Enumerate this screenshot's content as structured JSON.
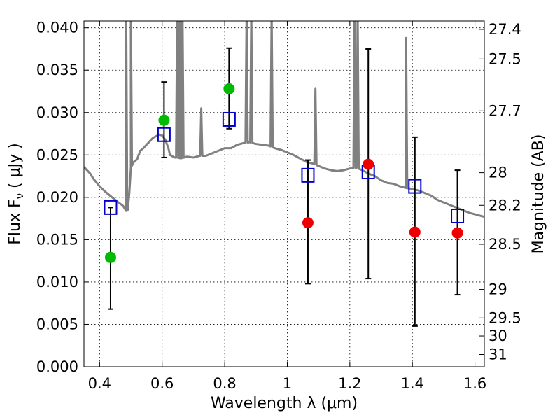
{
  "chart_data": {
    "type": "scatter",
    "xlabel": "Wavelength  λ (μm)",
    "ylabel": "Flux  F",
    "ylabel_sub": "ν",
    "ylabel_unit": "  ( μJy )",
    "y2label": "Magnitude (AB)",
    "xlim": [
      0.35,
      1.63
    ],
    "ylim": [
      0.0,
      0.0408
    ],
    "grid": true,
    "x_ticks": [
      {
        "value": 0.4,
        "label": "0.4"
      },
      {
        "value": 0.6,
        "label": "0.6"
      },
      {
        "value": 0.8,
        "label": "0.8"
      },
      {
        "value": 1.0,
        "label": "1"
      },
      {
        "value": 1.2,
        "label": "1.2"
      },
      {
        "value": 1.4,
        "label": "1.4"
      },
      {
        "value": 1.6,
        "label": "1.6"
      }
    ],
    "y_ticks": [
      {
        "value": 0.0,
        "label": "0.000"
      },
      {
        "value": 0.005,
        "label": "0.005"
      },
      {
        "value": 0.01,
        "label": "0.010"
      },
      {
        "value": 0.015,
        "label": "0.015"
      },
      {
        "value": 0.02,
        "label": "0.020"
      },
      {
        "value": 0.025,
        "label": "0.025"
      },
      {
        "value": 0.03,
        "label": "0.030"
      },
      {
        "value": 0.035,
        "label": "0.035"
      },
      {
        "value": 0.04,
        "label": "0.040"
      }
    ],
    "y2_ticks": [
      {
        "value": 27.4,
        "label": "27.4"
      },
      {
        "value": 27.5,
        "label": "27.5"
      },
      {
        "value": 27.7,
        "label": "27.7"
      },
      {
        "value": 28.0,
        "label": "28"
      },
      {
        "value": 28.2,
        "label": "28.2"
      },
      {
        "value": 28.5,
        "label": "28.5"
      },
      {
        "value": 29.0,
        "label": "29"
      },
      {
        "value": 29.5,
        "label": "29.5"
      },
      {
        "value": 30.0,
        "label": "30"
      },
      {
        "value": 31.0,
        "label": "31"
      }
    ],
    "model_spectrum": {
      "color": "#808080",
      "points": [
        [
          0.35,
          0.0236
        ],
        [
          0.37,
          0.0228
        ],
        [
          0.38,
          0.0222
        ],
        [
          0.4,
          0.0213
        ],
        [
          0.42,
          0.0206
        ],
        [
          0.44,
          0.02
        ],
        [
          0.46,
          0.0194
        ],
        [
          0.475,
          0.019
        ],
        [
          0.485,
          0.0184
        ],
        [
          0.49,
          0.0185
        ],
        [
          0.495,
          0.0205
        ],
        [
          0.5,
          0.0235
        ],
        [
          0.51,
          0.0242
        ],
        [
          0.52,
          0.0245
        ],
        [
          0.53,
          0.0255
        ],
        [
          0.54,
          0.0258
        ],
        [
          0.55,
          0.0262
        ],
        [
          0.56,
          0.0266
        ],
        [
          0.57,
          0.027
        ],
        [
          0.58,
          0.0272
        ],
        [
          0.59,
          0.0274
        ],
        [
          0.6,
          0.0273
        ],
        [
          0.61,
          0.0268
        ],
        [
          0.62,
          0.0258
        ],
        [
          0.625,
          0.025
        ],
        [
          0.64,
          0.0247
        ],
        [
          0.66,
          0.0246
        ],
        [
          0.68,
          0.0248
        ],
        [
          0.7,
          0.0247
        ],
        [
          0.72,
          0.0249
        ],
        [
          0.74,
          0.0249
        ],
        [
          0.76,
          0.0252
        ],
        [
          0.78,
          0.0255
        ],
        [
          0.8,
          0.0258
        ],
        [
          0.82,
          0.0258
        ],
        [
          0.84,
          0.0262
        ],
        [
          0.86,
          0.0264
        ],
        [
          0.88,
          0.0265
        ],
        [
          0.9,
          0.0263
        ],
        [
          0.92,
          0.0262
        ],
        [
          0.94,
          0.0261
        ],
        [
          0.96,
          0.0258
        ],
        [
          0.98,
          0.0256
        ],
        [
          1.0,
          0.0253
        ],
        [
          1.02,
          0.025
        ],
        [
          1.04,
          0.0246
        ],
        [
          1.06,
          0.0242
        ],
        [
          1.08,
          0.024
        ],
        [
          1.1,
          0.0237
        ],
        [
          1.12,
          0.0234
        ],
        [
          1.14,
          0.0232
        ],
        [
          1.16,
          0.0231
        ],
        [
          1.18,
          0.0232
        ],
        [
          1.2,
          0.0234
        ],
        [
          1.22,
          0.0235
        ],
        [
          1.24,
          0.0232
        ],
        [
          1.26,
          0.0228
        ],
        [
          1.28,
          0.0225
        ],
        [
          1.3,
          0.022
        ],
        [
          1.32,
          0.0217
        ],
        [
          1.34,
          0.0216
        ],
        [
          1.36,
          0.0213
        ],
        [
          1.38,
          0.0211
        ],
        [
          1.4,
          0.021
        ],
        [
          1.42,
          0.0208
        ],
        [
          1.44,
          0.0205
        ],
        [
          1.46,
          0.0202
        ],
        [
          1.48,
          0.0197
        ],
        [
          1.5,
          0.0194
        ],
        [
          1.52,
          0.0191
        ],
        [
          1.54,
          0.0188
        ],
        [
          1.56,
          0.0185
        ],
        [
          1.58,
          0.0182
        ],
        [
          1.6,
          0.018
        ],
        [
          1.63,
          0.0177
        ]
      ],
      "emission_lines": [
        {
          "x": 0.485,
          "peak": 0.042
        },
        {
          "x": 0.5,
          "peak": 0.042
        },
        {
          "x": 0.648,
          "peak": 0.042
        },
        {
          "x": 0.655,
          "peak": 0.042
        },
        {
          "x": 0.66,
          "peak": 0.042
        },
        {
          "x": 0.665,
          "peak": 0.042
        },
        {
          "x": 0.725,
          "peak": 0.0305
        },
        {
          "x": 0.87,
          "peak": 0.042
        },
        {
          "x": 0.885,
          "peak": 0.042
        },
        {
          "x": 0.95,
          "peak": 0.042
        },
        {
          "x": 1.09,
          "peak": 0.0328
        },
        {
          "x": 1.215,
          "peak": 0.042
        },
        {
          "x": 1.225,
          "peak": 0.042
        },
        {
          "x": 1.38,
          "peak": 0.0388
        }
      ]
    },
    "errorbars": [
      {
        "x": 0.435,
        "low": 0.0068,
        "high": 0.0188
      },
      {
        "x": 0.606,
        "low": 0.0247,
        "high": 0.0336
      },
      {
        "x": 0.814,
        "low": 0.0281,
        "high": 0.0376
      },
      {
        "x": 1.066,
        "low": 0.0098,
        "high": 0.0244
      },
      {
        "x": 1.259,
        "low": 0.0104,
        "high": 0.0375
      },
      {
        "x": 1.408,
        "low": 0.0048,
        "high": 0.0271
      },
      {
        "x": 1.544,
        "low": 0.0085,
        "high": 0.0232
      }
    ],
    "series": [
      {
        "marker": "square",
        "color": "#0000cc",
        "x": [
          0.435,
          0.606,
          0.814,
          1.066,
          1.259,
          1.408,
          1.544
        ],
        "y": [
          0.0188,
          0.0274,
          0.0292,
          0.0226,
          0.023,
          0.0213,
          0.0178
        ]
      },
      {
        "marker": "circle",
        "color": "#00bb00",
        "x": [
          0.435,
          0.606,
          0.814
        ],
        "y": [
          0.0129,
          0.0291,
          0.0328
        ]
      },
      {
        "marker": "circle",
        "color": "#ee0000",
        "x": [
          1.066,
          1.259,
          1.408,
          1.544
        ],
        "y": [
          0.017,
          0.0239,
          0.0159,
          0.0158
        ]
      }
    ]
  }
}
